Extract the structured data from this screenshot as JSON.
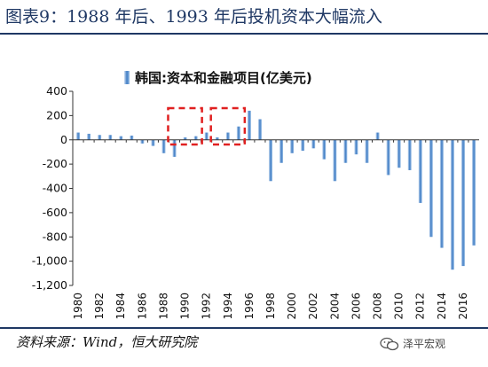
{
  "figure": {
    "title": "图表9：1988 年后、1993 年后投机资本大幅流入",
    "source": "资料来源：Wind，恒大研究院",
    "watermark": "泽平宏观",
    "watermark_icon": "wechat-icon"
  },
  "colors": {
    "title": "#1f3864",
    "bar_top": "#8fb4de",
    "bar_mid": "#2e6db4",
    "highlight": "#e02020"
  },
  "chart_data": {
    "type": "bar",
    "legend": "韩国:资本和金融项目(亿美元)",
    "legend_position": "top-center",
    "x": [
      1980,
      1981,
      1982,
      1983,
      1984,
      1985,
      1986,
      1987,
      1988,
      1989,
      1990,
      1991,
      1992,
      1993,
      1994,
      1995,
      1996,
      1997,
      1998,
      1999,
      2000,
      2001,
      2002,
      2003,
      2004,
      2005,
      2006,
      2007,
      2008,
      2009,
      2010,
      2011,
      2012,
      2013,
      2014,
      2015,
      2016,
      2017
    ],
    "values": [
      60,
      50,
      40,
      40,
      30,
      35,
      -30,
      -50,
      -110,
      -140,
      20,
      30,
      60,
      20,
      60,
      110,
      240,
      170,
      -340,
      -190,
      -110,
      -90,
      -70,
      -160,
      -340,
      -190,
      -120,
      -190,
      60,
      -290,
      -230,
      -250,
      -520,
      -800,
      -890,
      -1070,
      -1040,
      -870
    ],
    "xticks": [
      "1980",
      "1982",
      "1984",
      "1986",
      "1988",
      "1990",
      "1992",
      "1994",
      "1996",
      "1998",
      "2000",
      "2002",
      "2004",
      "2006",
      "2008",
      "2010",
      "2012",
      "2014",
      "2016"
    ],
    "yticks": [
      "400",
      "200",
      "0",
      "-200",
      "-400",
      "-600",
      "-800",
      "-1,000",
      "-1,200"
    ],
    "ylim": [
      -1200,
      400
    ],
    "grid": false,
    "highlights": [
      {
        "from": 1989,
        "to": 1991
      },
      {
        "from": 1993,
        "to": 1995
      }
    ]
  }
}
